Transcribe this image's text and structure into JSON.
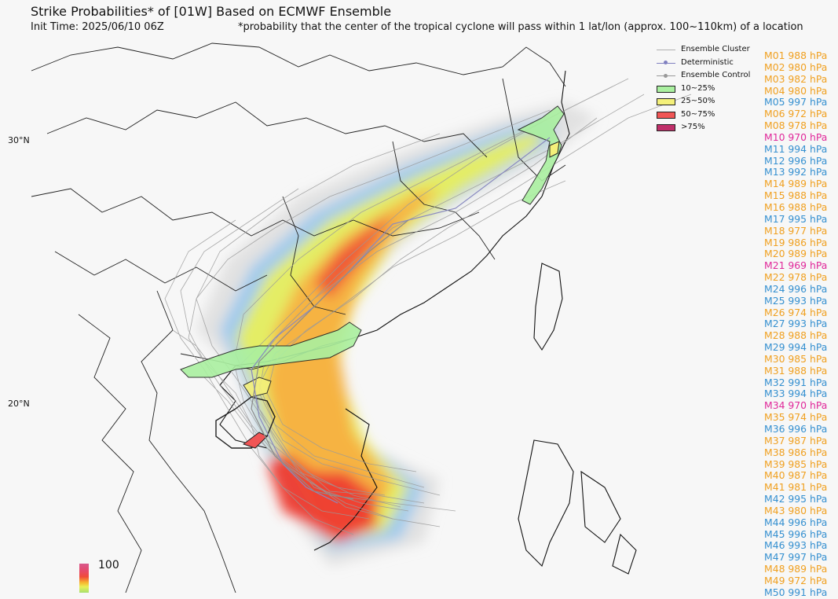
{
  "title": "Strike Probabilities* of [01W] Based on ECMWF Ensemble",
  "init_time": "Init Time: 2025/06/10 06Z",
  "footnote": "*probability that the center of the tropical cyclone will pass within 1 lat/lon (approx. 100~110km) of a location",
  "lat_labels": [
    "30°N",
    "20°N"
  ],
  "legend": {
    "items": [
      {
        "label": "Ensemble Cluster",
        "kind": "line",
        "color": "#b0b0b0"
      },
      {
        "label": "Deterministic",
        "kind": "line-dot",
        "color": "#8080c0"
      },
      {
        "label": "Ensemble Control",
        "kind": "line-dot",
        "color": "#999999"
      },
      {
        "label": "10~25%",
        "kind": "box",
        "color": "#aaf0a0"
      },
      {
        "label": "25~50%",
        "kind": "box",
        "color": "#f4f07a"
      },
      {
        "label": "50~75%",
        "kind": "box",
        "color": "#f05555"
      },
      {
        "label": ">75%",
        "kind": "box",
        "color": "#c0306a"
      }
    ]
  },
  "colors": {
    "weak": "#f0a020",
    "mid": "#3590d0",
    "strong": "#e0289a"
  },
  "members": [
    {
      "text": "M01 988 hPa",
      "cls": "weak"
    },
    {
      "text": "M02 980 hPa",
      "cls": "weak"
    },
    {
      "text": "M03 982 hPa",
      "cls": "weak"
    },
    {
      "text": "M04 980 hPa",
      "cls": "weak"
    },
    {
      "text": "M05 997 hPa",
      "cls": "mid"
    },
    {
      "text": "M06 972 hPa",
      "cls": "weak"
    },
    {
      "text": "M08 978 hPa",
      "cls": "weak"
    },
    {
      "text": "M10 970 hPa",
      "cls": "strong"
    },
    {
      "text": "M11 994 hPa",
      "cls": "mid"
    },
    {
      "text": "M12 996 hPa",
      "cls": "mid"
    },
    {
      "text": "M13 992 hPa",
      "cls": "mid"
    },
    {
      "text": "M14 989 hPa",
      "cls": "weak"
    },
    {
      "text": "M15 988 hPa",
      "cls": "weak"
    },
    {
      "text": "M16 988 hPa",
      "cls": "weak"
    },
    {
      "text": "M17 995 hPa",
      "cls": "mid"
    },
    {
      "text": "M18 977 hPa",
      "cls": "weak"
    },
    {
      "text": "M19 986 hPa",
      "cls": "weak"
    },
    {
      "text": "M20 989 hPa",
      "cls": "weak"
    },
    {
      "text": "M21 969 hPa",
      "cls": "strong"
    },
    {
      "text": "M22 978 hPa",
      "cls": "weak"
    },
    {
      "text": "M24 996 hPa",
      "cls": "mid"
    },
    {
      "text": "M25 993 hPa",
      "cls": "mid"
    },
    {
      "text": "M26 974 hPa",
      "cls": "weak"
    },
    {
      "text": "M27 993 hPa",
      "cls": "mid"
    },
    {
      "text": "M28 988 hPa",
      "cls": "weak"
    },
    {
      "text": "M29 994 hPa",
      "cls": "mid"
    },
    {
      "text": "M30 985 hPa",
      "cls": "weak"
    },
    {
      "text": "M31 988 hPa",
      "cls": "weak"
    },
    {
      "text": "M32 991 hPa",
      "cls": "mid"
    },
    {
      "text": "M33 994 hPa",
      "cls": "mid"
    },
    {
      "text": "M34 970 hPa",
      "cls": "strong"
    },
    {
      "text": "M35 974 hPa",
      "cls": "weak"
    },
    {
      "text": "M36 996 hPa",
      "cls": "mid"
    },
    {
      "text": "M37 987 hPa",
      "cls": "weak"
    },
    {
      "text": "M38 986 hPa",
      "cls": "weak"
    },
    {
      "text": "M39 985 hPa",
      "cls": "weak"
    },
    {
      "text": "M40 987 hPa",
      "cls": "weak"
    },
    {
      "text": "M41 981 hPa",
      "cls": "weak"
    },
    {
      "text": "M42 995 hPa",
      "cls": "mid"
    },
    {
      "text": "M43 980 hPa",
      "cls": "weak"
    },
    {
      "text": "M44 996 hPa",
      "cls": "mid"
    },
    {
      "text": "M45 996 hPa",
      "cls": "mid"
    },
    {
      "text": "M46 993 hPa",
      "cls": "mid"
    },
    {
      "text": "M47 997 hPa",
      "cls": "mid"
    },
    {
      "text": "M48 989 hPa",
      "cls": "weak"
    },
    {
      "text": "M49 972 hPa",
      "cls": "weak"
    },
    {
      "text": "M50 991 hPa",
      "cls": "mid"
    }
  ],
  "colorbar_max": "100"
}
